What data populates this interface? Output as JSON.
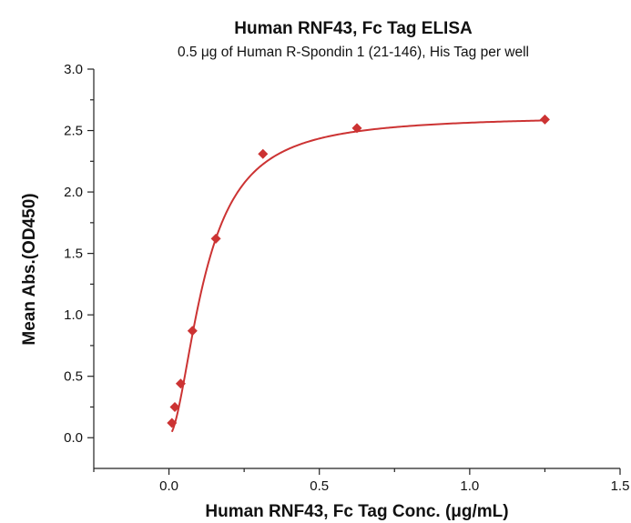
{
  "chart_data": {
    "type": "scatter",
    "title": "Human RNF43, Fc Tag ELISA",
    "subtitle": "0.5 μg of Human R-Spondin 1 (21-146), His Tag per well",
    "xlabel": "Human RNF43, Fc Tag Conc. (μg/mL)",
    "ylabel": "Mean Abs.(OD450)",
    "xlim": [
      -0.25,
      1.5
    ],
    "ylim": [
      -0.25,
      3.0
    ],
    "x_ticks": [
      0.0,
      0.5,
      1.0,
      1.5
    ],
    "x_tick_labels": [
      "0.0",
      "0.5",
      "1.0",
      "1.5"
    ],
    "y_ticks": [
      0.0,
      0.5,
      1.0,
      1.5,
      2.0,
      2.5,
      3.0
    ],
    "y_tick_labels": [
      "0.0",
      "0.5",
      "1.0",
      "1.5",
      "2.0",
      "2.5",
      "3.0"
    ],
    "grid": false,
    "marker": "diamond",
    "series_color": "#cc3333",
    "points": [
      {
        "x": 0.0098,
        "y": 0.12
      },
      {
        "x": 0.0195,
        "y": 0.25
      },
      {
        "x": 0.039,
        "y": 0.44
      },
      {
        "x": 0.078,
        "y": 0.87
      },
      {
        "x": 0.156,
        "y": 1.62
      },
      {
        "x": 0.3125,
        "y": 2.31
      },
      {
        "x": 0.625,
        "y": 2.52
      },
      {
        "x": 1.25,
        "y": 2.59
      }
    ],
    "fit": {
      "type": "4PL",
      "bottom": 0.02,
      "top": 2.62,
      "ec50": 0.12,
      "hill": 1.8
    }
  }
}
